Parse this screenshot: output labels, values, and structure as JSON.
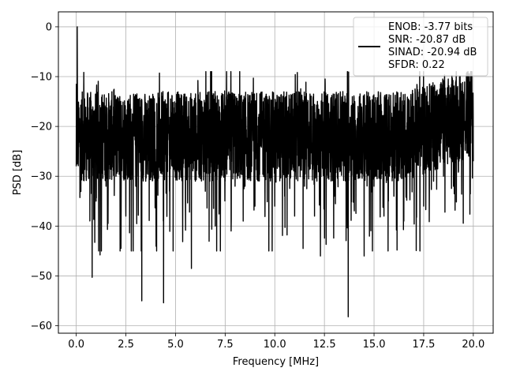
{
  "chart_data": {
    "type": "line",
    "xlabel": "Frequency [MHz]",
    "ylabel": "PSD [dB]",
    "xlim": [
      -0.9,
      21.0
    ],
    "ylim": [
      -61.5,
      3.0
    ],
    "x_ticks": [
      0.0,
      2.5,
      5.0,
      7.5,
      10.0,
      12.5,
      15.0,
      17.5,
      20.0
    ],
    "x_tick_labels": [
      "0.0",
      "2.5",
      "5.0",
      "7.5",
      "10.0",
      "12.5",
      "15.0",
      "17.5",
      "20.0"
    ],
    "y_ticks": [
      0,
      -10,
      -20,
      -30,
      -40,
      -50,
      -60
    ],
    "y_tick_labels": [
      "0",
      "−10",
      "−20",
      "−30",
      "−40",
      "−50",
      "−60"
    ],
    "grid": true,
    "legend_position": "top-right",
    "series": [
      {
        "name": "ENOB: -3.77 bits\nSNR: -20.87 dB\nSINAD: -20.94 dB\nSFDR: 0.22",
        "color": "#000000",
        "approximate": true,
        "x_start": 0.0,
        "x_end": 20.0,
        "noise_floor_db": -22,
        "peak_db": 0.0,
        "min_db": -58.2,
        "x": [
          0.0,
          0.05,
          0.5,
          0.8,
          1.0,
          1.2,
          1.5,
          2.0,
          2.5,
          3.0,
          3.3,
          3.5,
          4.0,
          4.4,
          4.7,
          5.0,
          5.5,
          5.8,
          6.0,
          6.5,
          7.0,
          7.5,
          7.8,
          8.0,
          8.5,
          9.0,
          9.5,
          10.0,
          10.5,
          11.0,
          11.5,
          12.0,
          12.3,
          12.5,
          13.0,
          13.7,
          14.0,
          14.5,
          15.0,
          15.5,
          16.0,
          16.5,
          17.0,
          17.5,
          18.0,
          18.5,
          19.0,
          19.5,
          20.0
        ],
        "y": [
          -28,
          0.0,
          -30,
          -50.3,
          -35,
          -45.8,
          -32,
          -30,
          -38,
          -32,
          -55,
          -31,
          -36,
          -55.4,
          -33,
          -30,
          -35,
          -48.5,
          -31,
          -33,
          -40,
          -31,
          -41,
          -32,
          -32,
          -36,
          -33,
          -36,
          -34,
          -38,
          -32,
          -38,
          -46,
          -33,
          -34,
          -58.2,
          -36,
          -46,
          -32,
          -38,
          -34,
          -39,
          -30,
          -36,
          -31,
          -30,
          -32,
          -20,
          -27
        ]
      }
    ]
  }
}
